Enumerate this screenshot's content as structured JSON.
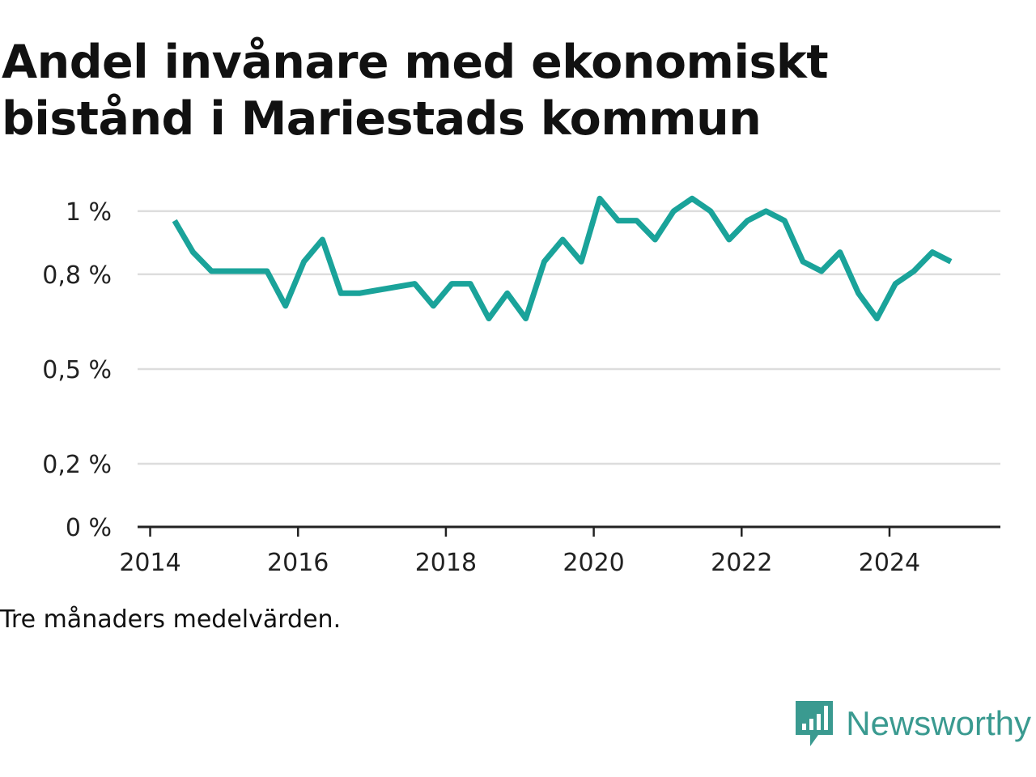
{
  "title": "Andel invånare med ekonomiskt bistånd i Mariestads kommun",
  "note": "Tre månaders medelvärden.",
  "brand": {
    "name": "Newsworthy",
    "icon": "newsworthy-logo-icon"
  },
  "colors": {
    "line": "#1aa39a",
    "grid": "#dddddd",
    "axis": "#222222",
    "brand": "#3a9a90"
  },
  "chart_data": {
    "type": "line",
    "title": "Andel invånare med ekonomiskt bistånd i Mariestads kommun",
    "xlabel": "",
    "ylabel": "",
    "xlim": [
      2013.83,
      2025.5
    ],
    "ylim": [
      0,
      1.01
    ],
    "y_ticks": [
      {
        "value": 0,
        "label": "0 %"
      },
      {
        "value": 0.2,
        "label": "0,2 %"
      },
      {
        "value": 0.5,
        "label": "0,5 %"
      },
      {
        "value": 0.8,
        "label": "0,8 %"
      },
      {
        "value": 1.0,
        "label": "1 %"
      }
    ],
    "x_ticks": [
      {
        "value": 2014,
        "label": "2014"
      },
      {
        "value": 2016,
        "label": "2016"
      },
      {
        "value": 2018,
        "label": "2018"
      },
      {
        "value": 2020,
        "label": "2020"
      },
      {
        "value": 2022,
        "label": "2022"
      },
      {
        "value": 2024,
        "label": "2024"
      }
    ],
    "grid": true,
    "series": [
      {
        "points": [
          [
            2014.33,
            0.97
          ],
          [
            2014.58,
            0.87
          ],
          [
            2014.83,
            0.81
          ],
          [
            2015.08,
            0.81
          ],
          [
            2015.33,
            0.81
          ],
          [
            2015.58,
            0.81
          ],
          [
            2015.83,
            0.7
          ],
          [
            2016.08,
            0.84
          ],
          [
            2016.33,
            0.91
          ],
          [
            2016.58,
            0.74
          ],
          [
            2016.83,
            0.74
          ],
          [
            2017.58,
            0.77
          ],
          [
            2017.83,
            0.7
          ],
          [
            2018.08,
            0.77
          ],
          [
            2018.33,
            0.77
          ],
          [
            2018.58,
            0.66
          ],
          [
            2018.83,
            0.74
          ],
          [
            2019.08,
            0.66
          ],
          [
            2019.33,
            0.84
          ],
          [
            2019.58,
            0.91
          ],
          [
            2019.83,
            0.84
          ],
          [
            2020.08,
            1.04
          ],
          [
            2020.33,
            0.97
          ],
          [
            2020.58,
            0.97
          ],
          [
            2020.83,
            0.91
          ],
          [
            2021.08,
            1.0
          ],
          [
            2021.33,
            1.04
          ],
          [
            2021.58,
            1.0
          ],
          [
            2021.83,
            0.91
          ],
          [
            2022.08,
            0.97
          ],
          [
            2022.33,
            1.0
          ],
          [
            2022.58,
            0.97
          ],
          [
            2022.83,
            0.84
          ],
          [
            2023.08,
            0.81
          ],
          [
            2023.33,
            0.87
          ],
          [
            2023.58,
            0.74
          ],
          [
            2023.83,
            0.66
          ],
          [
            2024.08,
            0.77
          ],
          [
            2024.33,
            0.81
          ],
          [
            2024.58,
            0.87
          ],
          [
            2024.83,
            0.84
          ]
        ]
      }
    ]
  }
}
